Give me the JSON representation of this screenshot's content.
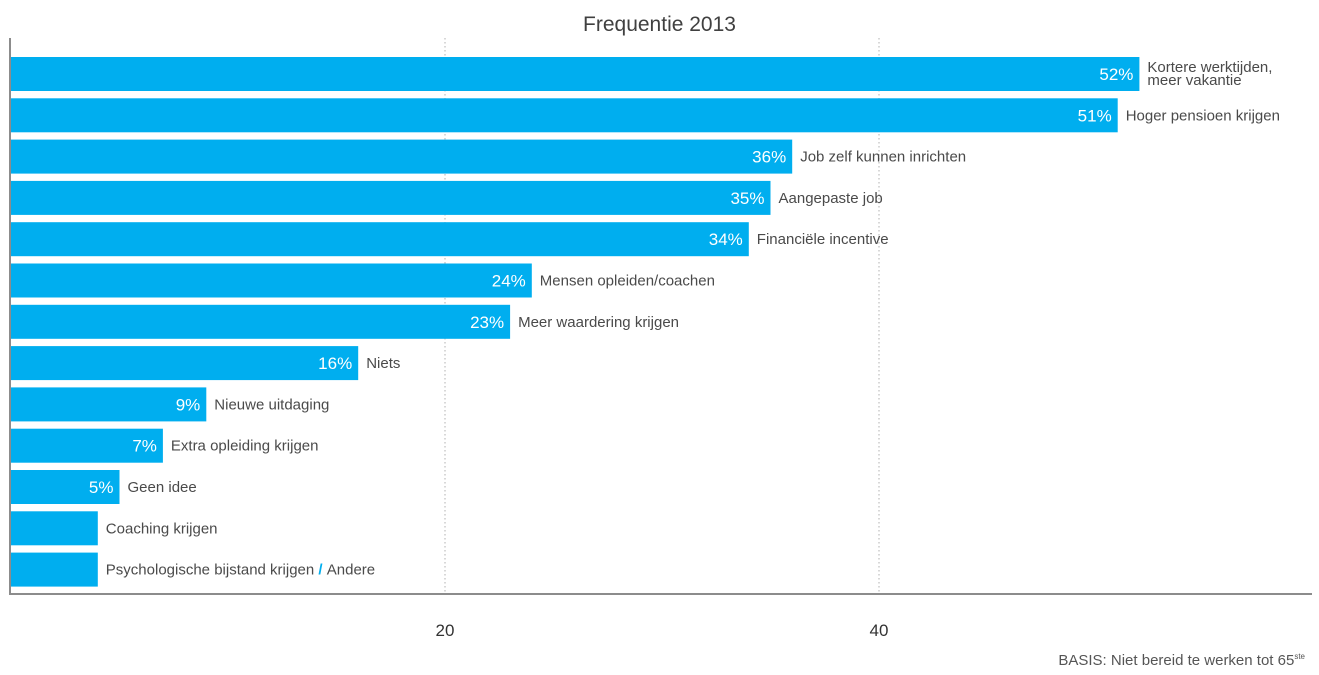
{
  "chart_data": {
    "type": "bar",
    "orientation": "horizontal",
    "title": "Frequentie 2013",
    "xlabel": "",
    "ylabel": "",
    "xlim": [
      0,
      60
    ],
    "xticks": [
      20,
      40
    ],
    "grid": true,
    "bar_color": "#00aeef",
    "categories": [
      "Kortere werktijden, meer vakantie",
      "Hoger pensioen krijgen",
      "Job zelf kunnen inrichten",
      "Aangepaste job",
      "Financiële incentive",
      "Mensen opleiden/coachen",
      "Meer waardering krijgen",
      "Niets",
      "Nieuwe uitdaging",
      "Extra opleiding krijgen",
      "Geen idee",
      "Coaching krijgen",
      "Psychologische bijstand krijgen / Andere"
    ],
    "values": [
      52,
      51,
      36,
      35,
      34,
      24,
      23,
      16,
      9,
      7,
      5,
      4,
      4
    ],
    "value_labels": [
      "52%",
      "51%",
      "36%",
      "35%",
      "34%",
      "24%",
      "23%",
      "16%",
      "9%",
      "7%",
      "5%",
      "",
      ""
    ],
    "label_lines": [
      [
        "Kortere werktijden,",
        "meer vakantie"
      ],
      [
        "Hoger pensioen krijgen"
      ],
      [
        "Job zelf kunnen inrichten"
      ],
      [
        "Aangepaste job"
      ],
      [
        "Financiële incentive"
      ],
      [
        "Mensen opleiden/coachen"
      ],
      [
        "Meer waardering krijgen"
      ],
      [
        "Niets"
      ],
      [
        "Nieuwe uitdaging"
      ],
      [
        "Extra opleiding krijgen"
      ],
      [
        "Geen idee"
      ],
      [
        "Coaching krijgen"
      ],
      [
        "Psychologische bijstand krijgen",
        " / ",
        "Andere"
      ]
    ]
  },
  "footnote": {
    "text": "BASIS: Niet bereid te werken tot 65",
    "superscript": "ste"
  }
}
